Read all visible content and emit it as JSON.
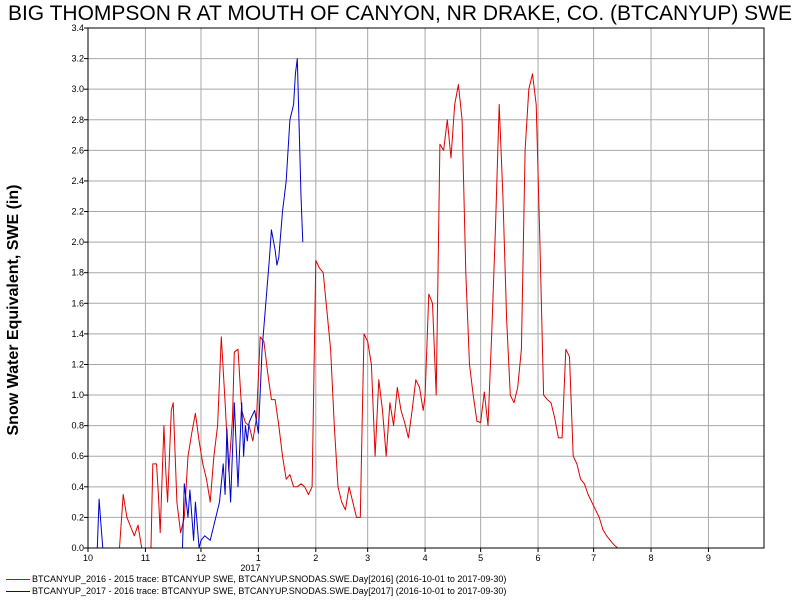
{
  "title": "BIG THOMPSON R AT MOUTH OF CANYON, NR DRAKE, CO. (BTCANYUP) SWE",
  "chart_data": {
    "type": "line",
    "title": "BIG THOMPSON R AT MOUTH OF CANYON, NR DRAKE, CO. (BTCANYUP) SWE",
    "ylabel": "Snow Water Equivalent, SWE (in)",
    "xlabel": "",
    "xlim": [
      "2016-10-01",
      "2017-10-01"
    ],
    "ylim": [
      0,
      3.4
    ],
    "grid": true,
    "legend_position": "bottom",
    "x_tick_labels": [
      "10",
      "11",
      "12",
      "1",
      "2",
      "3",
      "4",
      "5",
      "6",
      "7",
      "8",
      "9"
    ],
    "x_tick_dates": [
      "2016-10-01",
      "2016-11-01",
      "2016-12-01",
      "2017-01-01",
      "2017-02-01",
      "2017-03-01",
      "2017-04-01",
      "2017-05-01",
      "2017-06-01",
      "2017-07-01",
      "2017-08-01",
      "2017-09-01"
    ],
    "year_label": "2017",
    "y_ticks": [
      "0.0",
      "0.2",
      "0.4",
      "0.6",
      "0.8",
      "1.0",
      "1.2",
      "1.4",
      "1.6",
      "1.8",
      "2.0",
      "2.2",
      "2.4",
      "2.6",
      "2.8",
      "3.0",
      "3.2",
      "3.4"
    ],
    "series": [
      {
        "name": "BTCANYUP_2016 - 2015 trace: BTCANYUP SWE, BTCANYUP.SNODAS.SWE.Day[2016] (2016-10-01 to 2017-09-30)",
        "color": "#e00000",
        "points": [
          [
            "2016-10-18",
            0.0
          ],
          [
            "2016-10-20",
            0.35
          ],
          [
            "2016-10-22",
            0.2
          ],
          [
            "2016-10-26",
            0.08
          ],
          [
            "2016-10-28",
            0.15
          ],
          [
            "2016-10-30",
            0.0
          ],
          [
            "2016-11-04",
            0.0
          ],
          [
            "2016-11-05",
            0.55
          ],
          [
            "2016-11-07",
            0.55
          ],
          [
            "2016-11-08",
            0.35
          ],
          [
            "2016-11-09",
            0.1
          ],
          [
            "2016-11-11",
            0.8
          ],
          [
            "2016-11-12",
            0.5
          ],
          [
            "2016-11-13",
            0.3
          ],
          [
            "2016-11-15",
            0.9
          ],
          [
            "2016-11-16",
            0.95
          ],
          [
            "2016-11-18",
            0.3
          ],
          [
            "2016-11-20",
            0.1
          ],
          [
            "2016-11-22",
            0.2
          ],
          [
            "2016-11-24",
            0.6
          ],
          [
            "2016-11-26",
            0.75
          ],
          [
            "2016-11-28",
            0.88
          ],
          [
            "2016-11-30",
            0.7
          ],
          [
            "2016-12-02",
            0.55
          ],
          [
            "2016-12-04",
            0.45
          ],
          [
            "2016-12-06",
            0.3
          ],
          [
            "2016-12-08",
            0.6
          ],
          [
            "2016-12-10",
            0.8
          ],
          [
            "2016-12-12",
            1.38
          ],
          [
            "2016-12-14",
            0.95
          ],
          [
            "2016-12-16",
            0.5
          ],
          [
            "2016-12-18",
            0.85
          ],
          [
            "2016-12-19",
            1.28
          ],
          [
            "2016-12-21",
            1.3
          ],
          [
            "2016-12-23",
            0.9
          ],
          [
            "2016-12-25",
            0.82
          ],
          [
            "2016-12-27",
            0.8
          ],
          [
            "2016-12-29",
            0.7
          ],
          [
            "2016-12-31",
            0.85
          ],
          [
            "2017-01-02",
            1.38
          ],
          [
            "2017-01-04",
            1.35
          ],
          [
            "2017-01-06",
            1.15
          ],
          [
            "2017-01-08",
            0.97
          ],
          [
            "2017-01-10",
            0.97
          ],
          [
            "2017-01-12",
            0.8
          ],
          [
            "2017-01-14",
            0.6
          ],
          [
            "2017-01-16",
            0.45
          ],
          [
            "2017-01-18",
            0.48
          ],
          [
            "2017-01-20",
            0.4
          ],
          [
            "2017-01-22",
            0.4
          ],
          [
            "2017-01-24",
            0.42
          ],
          [
            "2017-01-26",
            0.4
          ],
          [
            "2017-01-28",
            0.35
          ],
          [
            "2017-01-30",
            0.4
          ],
          [
            "2017-02-01",
            1.88
          ],
          [
            "2017-02-03",
            1.83
          ],
          [
            "2017-02-05",
            1.8
          ],
          [
            "2017-02-07",
            1.55
          ],
          [
            "2017-02-09",
            1.3
          ],
          [
            "2017-02-11",
            0.8
          ],
          [
            "2017-02-13",
            0.4
          ],
          [
            "2017-02-15",
            0.3
          ],
          [
            "2017-02-17",
            0.25
          ],
          [
            "2017-02-19",
            0.4
          ],
          [
            "2017-02-21",
            0.3
          ],
          [
            "2017-02-23",
            0.2
          ],
          [
            "2017-02-25",
            0.2
          ],
          [
            "2017-02-26",
            0.8
          ],
          [
            "2017-02-27",
            1.4
          ],
          [
            "2017-03-01",
            1.35
          ],
          [
            "2017-03-03",
            1.2
          ],
          [
            "2017-03-05",
            0.6
          ],
          [
            "2017-03-07",
            1.1
          ],
          [
            "2017-03-09",
            0.9
          ],
          [
            "2017-03-11",
            0.6
          ],
          [
            "2017-03-13",
            0.95
          ],
          [
            "2017-03-15",
            0.8
          ],
          [
            "2017-03-17",
            1.05
          ],
          [
            "2017-03-19",
            0.9
          ],
          [
            "2017-03-21",
            0.82
          ],
          [
            "2017-03-23",
            0.72
          ],
          [
            "2017-03-25",
            0.9
          ],
          [
            "2017-03-27",
            1.1
          ],
          [
            "2017-03-29",
            1.05
          ],
          [
            "2017-03-31",
            0.9
          ],
          [
            "2017-04-01",
            1.0
          ],
          [
            "2017-04-03",
            1.66
          ],
          [
            "2017-04-05",
            1.6
          ],
          [
            "2017-04-07",
            1.0
          ],
          [
            "2017-04-09",
            2.64
          ],
          [
            "2017-04-11",
            2.6
          ],
          [
            "2017-04-13",
            2.8
          ],
          [
            "2017-04-15",
            2.55
          ],
          [
            "2017-04-17",
            2.9
          ],
          [
            "2017-04-19",
            3.03
          ],
          [
            "2017-04-21",
            2.8
          ],
          [
            "2017-04-23",
            1.8
          ],
          [
            "2017-04-25",
            1.2
          ],
          [
            "2017-04-27",
            1.0
          ],
          [
            "2017-04-29",
            0.83
          ],
          [
            "2017-05-01",
            0.82
          ],
          [
            "2017-05-03",
            1.02
          ],
          [
            "2017-05-05",
            0.8
          ],
          [
            "2017-05-07",
            1.4
          ],
          [
            "2017-05-09",
            2.1
          ],
          [
            "2017-05-11",
            2.9
          ],
          [
            "2017-05-13",
            2.3
          ],
          [
            "2017-05-15",
            1.5
          ],
          [
            "2017-05-17",
            1.0
          ],
          [
            "2017-05-19",
            0.95
          ],
          [
            "2017-05-21",
            1.05
          ],
          [
            "2017-05-23",
            1.3
          ],
          [
            "2017-05-25",
            2.6
          ],
          [
            "2017-05-27",
            3.0
          ],
          [
            "2017-05-29",
            3.1
          ],
          [
            "2017-05-31",
            2.9
          ],
          [
            "2017-06-02",
            2.0
          ],
          [
            "2017-06-04",
            1.0
          ],
          [
            "2017-06-06",
            0.97
          ],
          [
            "2017-06-08",
            0.95
          ],
          [
            "2017-06-10",
            0.85
          ],
          [
            "2017-06-12",
            0.72
          ],
          [
            "2017-06-14",
            0.72
          ],
          [
            "2017-06-16",
            1.3
          ],
          [
            "2017-06-18",
            1.25
          ],
          [
            "2017-06-20",
            0.6
          ],
          [
            "2017-06-22",
            0.55
          ],
          [
            "2017-06-24",
            0.45
          ],
          [
            "2017-06-26",
            0.42
          ],
          [
            "2017-06-28",
            0.35
          ],
          [
            "2017-06-30",
            0.3
          ],
          [
            "2017-07-02",
            0.25
          ],
          [
            "2017-07-04",
            0.2
          ],
          [
            "2017-07-06",
            0.12
          ],
          [
            "2017-07-08",
            0.08
          ],
          [
            "2017-07-10",
            0.05
          ],
          [
            "2017-07-12",
            0.02
          ],
          [
            "2017-07-14",
            0.0
          ]
        ]
      },
      {
        "name": "BTCANYUP_2017 - 2016 trace: BTCANYUP SWE, BTCANYUP.SNODAS.SWE.Day[2017] (2016-10-01 to 2017-09-30)",
        "color": "#0000cc",
        "points": [
          [
            "2016-10-06",
            0.0
          ],
          [
            "2016-10-07",
            0.32
          ],
          [
            "2016-10-08",
            0.15
          ],
          [
            "2016-10-09",
            0.0
          ],
          [
            "2016-11-21",
            0.0
          ],
          [
            "2016-11-22",
            0.42
          ],
          [
            "2016-11-24",
            0.2
          ],
          [
            "2016-11-25",
            0.38
          ],
          [
            "2016-11-27",
            0.05
          ],
          [
            "2016-11-28",
            0.3
          ],
          [
            "2016-11-30",
            0.0
          ],
          [
            "2016-12-01",
            0.05
          ],
          [
            "2016-12-03",
            0.08
          ],
          [
            "2016-12-06",
            0.05
          ],
          [
            "2016-12-09",
            0.2
          ],
          [
            "2016-12-11",
            0.3
          ],
          [
            "2016-12-13",
            0.55
          ],
          [
            "2016-12-14",
            0.35
          ],
          [
            "2016-12-15",
            0.78
          ],
          [
            "2016-12-17",
            0.3
          ],
          [
            "2016-12-19",
            0.95
          ],
          [
            "2016-12-21",
            0.4
          ],
          [
            "2016-12-23",
            0.95
          ],
          [
            "2016-12-24",
            0.6
          ],
          [
            "2016-12-25",
            0.8
          ],
          [
            "2016-12-26",
            0.7
          ],
          [
            "2016-12-27",
            0.82
          ],
          [
            "2016-12-28",
            0.85
          ],
          [
            "2016-12-30",
            0.9
          ],
          [
            "2017-01-01",
            0.75
          ],
          [
            "2017-01-03",
            1.3
          ],
          [
            "2017-01-05",
            1.6
          ],
          [
            "2017-01-07",
            1.9
          ],
          [
            "2017-01-08",
            2.08
          ],
          [
            "2017-01-10",
            1.95
          ],
          [
            "2017-01-11",
            1.85
          ],
          [
            "2017-01-12",
            1.9
          ],
          [
            "2017-01-14",
            2.2
          ],
          [
            "2017-01-16",
            2.4
          ],
          [
            "2017-01-18",
            2.8
          ],
          [
            "2017-01-20",
            2.9
          ],
          [
            "2017-01-21",
            3.1
          ],
          [
            "2017-01-22",
            3.2
          ],
          [
            "2017-01-24",
            2.3
          ],
          [
            "2017-01-25",
            2.0
          ]
        ]
      }
    ]
  }
}
